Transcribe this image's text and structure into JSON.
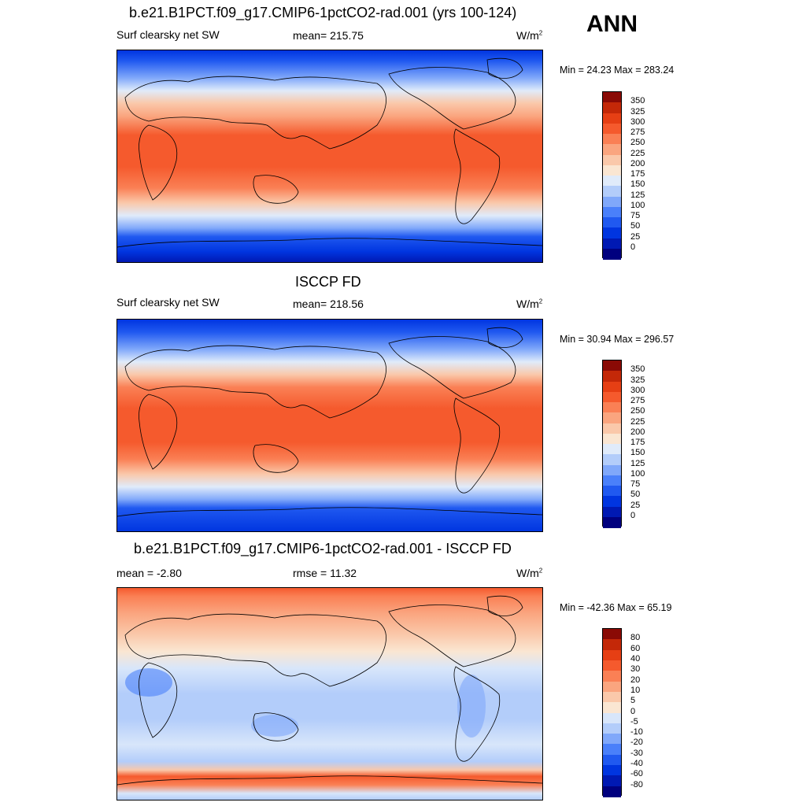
{
  "header": {
    "season": "ANN"
  },
  "colors": {
    "abs_scale": [
      "#00007f",
      "#0019b3",
      "#0035e0",
      "#2059f0",
      "#4a80fa",
      "#80a8fa",
      "#b3cdfa",
      "#e0ebfa",
      "#fae6d2",
      "#fac8aa",
      "#faa57f",
      "#fa8055",
      "#f55a2d",
      "#e63f14",
      "#c42808",
      "#8a0a05"
    ],
    "diff_scale": [
      "#00007f",
      "#0019b3",
      "#0035e0",
      "#2059f0",
      "#4a80fa",
      "#80a8fa",
      "#b3cdfa",
      "#d8e6fa",
      "#fae6d2",
      "#fac8aa",
      "#faa57f",
      "#fa8055",
      "#f55a2d",
      "#e63f14",
      "#c42808",
      "#8a0a05"
    ]
  },
  "chart_data": [
    {
      "type": "heatmap",
      "title": "b.e21.B1PCT.f09_g17.CMIP6-1pctCO2-rad.001 (yrs 100-124)",
      "variable": "Surf clearsky net SW",
      "stat_label": "mean= 215.75",
      "units": "W/m",
      "units_sup": "2",
      "minmax": "Min =  24.23 Max = 283.24",
      "colorbar_labels": [
        "350",
        "325",
        "300",
        "275",
        "250",
        "225",
        "200",
        "175",
        "150",
        "125",
        "100",
        "75",
        "50",
        "25",
        "0"
      ]
    },
    {
      "type": "heatmap",
      "title": "ISCCP FD",
      "variable": "Surf clearsky net SW",
      "stat_label": "mean= 218.56",
      "units": "W/m",
      "units_sup": "2",
      "minmax": "Min =  30.94 Max = 296.57",
      "colorbar_labels": [
        "350",
        "325",
        "300",
        "275",
        "250",
        "225",
        "200",
        "175",
        "150",
        "125",
        "100",
        "75",
        "50",
        "25",
        "0"
      ]
    },
    {
      "type": "heatmap",
      "title": "b.e21.B1PCT.f09_g17.CMIP6-1pctCO2-rad.001 - ISCCP FD",
      "stat_label": "mean =  -2.80",
      "rmse_label": "rmse =  11.32",
      "units": "W/m",
      "units_sup": "2",
      "minmax": "Min = -42.36 Max =  65.19",
      "colorbar_labels": [
        "80",
        "60",
        "40",
        "30",
        "20",
        "10",
        "5",
        "0",
        "-5",
        "-10",
        "-20",
        "-30",
        "-40",
        "-60",
        "-80"
      ]
    }
  ]
}
